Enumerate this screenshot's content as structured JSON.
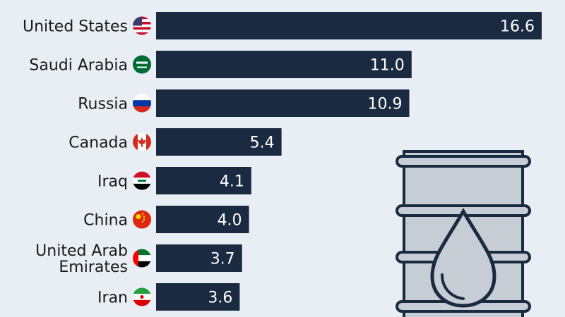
{
  "chart_data": {
    "type": "bar",
    "orientation": "horizontal",
    "categories": [
      "United States",
      "Saudi Arabia",
      "Russia",
      "Canada",
      "Iraq",
      "China",
      "United Arab Emirates",
      "Iran"
    ],
    "category_display_lines": [
      [
        "United States"
      ],
      [
        "Saudi Arabia"
      ],
      [
        "Russia"
      ],
      [
        "Canada"
      ],
      [
        "Iraq"
      ],
      [
        "China"
      ],
      [
        "United Arab",
        "Emirates"
      ],
      [
        "Iran"
      ]
    ],
    "values": [
      16.6,
      11.0,
      10.9,
      5.4,
      4.1,
      4.0,
      3.7,
      3.6
    ],
    "value_labels": [
      "16.6",
      "11.0",
      "10.9",
      "5.4",
      "4.1",
      "4.0",
      "3.7",
      "3.6"
    ],
    "flag_icons": [
      "us-flag-icon",
      "saudi-arabia-flag-icon",
      "russia-flag-icon",
      "canada-flag-icon",
      "iraq-flag-icon",
      "china-flag-icon",
      "uae-flag-icon",
      "iran-flag-icon"
    ],
    "title": "",
    "xlabel": "",
    "ylabel": "",
    "grid": false,
    "legend": "none",
    "colors": {
      "background": "#e8eef3",
      "bar": "#1a2b41",
      "value_text": "#ffffff",
      "label_text": "#1a1a1a",
      "barrel": "#c6cdd4",
      "barrel_outline": "#1a2b41"
    },
    "decoration": "oil-barrel-icon"
  }
}
